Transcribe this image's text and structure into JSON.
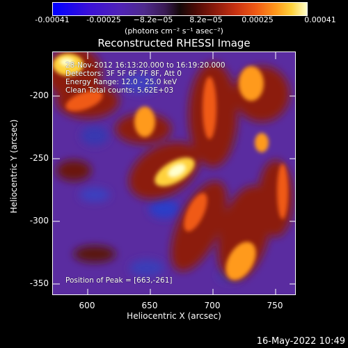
{
  "colorbar": {
    "ticks": [
      "-0.00041",
      "-0.00025",
      "−8.2e−05",
      "8.2e−05",
      "0.00025",
      "0.00041"
    ],
    "units": "(photons cm⁻² s⁻¹ asec⁻²)"
  },
  "title": "Reconstructed RHESSI Image",
  "annotations": {
    "time": "28-Nov-2012 16:13:20.000 to 16:19:20.000",
    "detectors": "Detectors: 3F 5F 6F 7F 8F, Att 0",
    "energy": "Energy Range: 12.0 - 25.0 keV",
    "clean": "Clean    Total counts: 5.62E+03",
    "peak": "Position of Peak = [663,-261]"
  },
  "axes": {
    "xlabel": "Heliocentric X (arcsec)",
    "ylabel": "Heliocentric Y (arcsec)",
    "xticks": [
      "600",
      "650",
      "700",
      "750"
    ],
    "yticks": [
      "-200",
      "-250",
      "-300",
      "-350"
    ]
  },
  "footer": {
    "date": "16-May-2022 10:49"
  },
  "colors": {
    "background": "#000000",
    "plot_bg": "#5a2ca0",
    "hot": "#ffd23c",
    "cold": "#2a3cc8"
  }
}
